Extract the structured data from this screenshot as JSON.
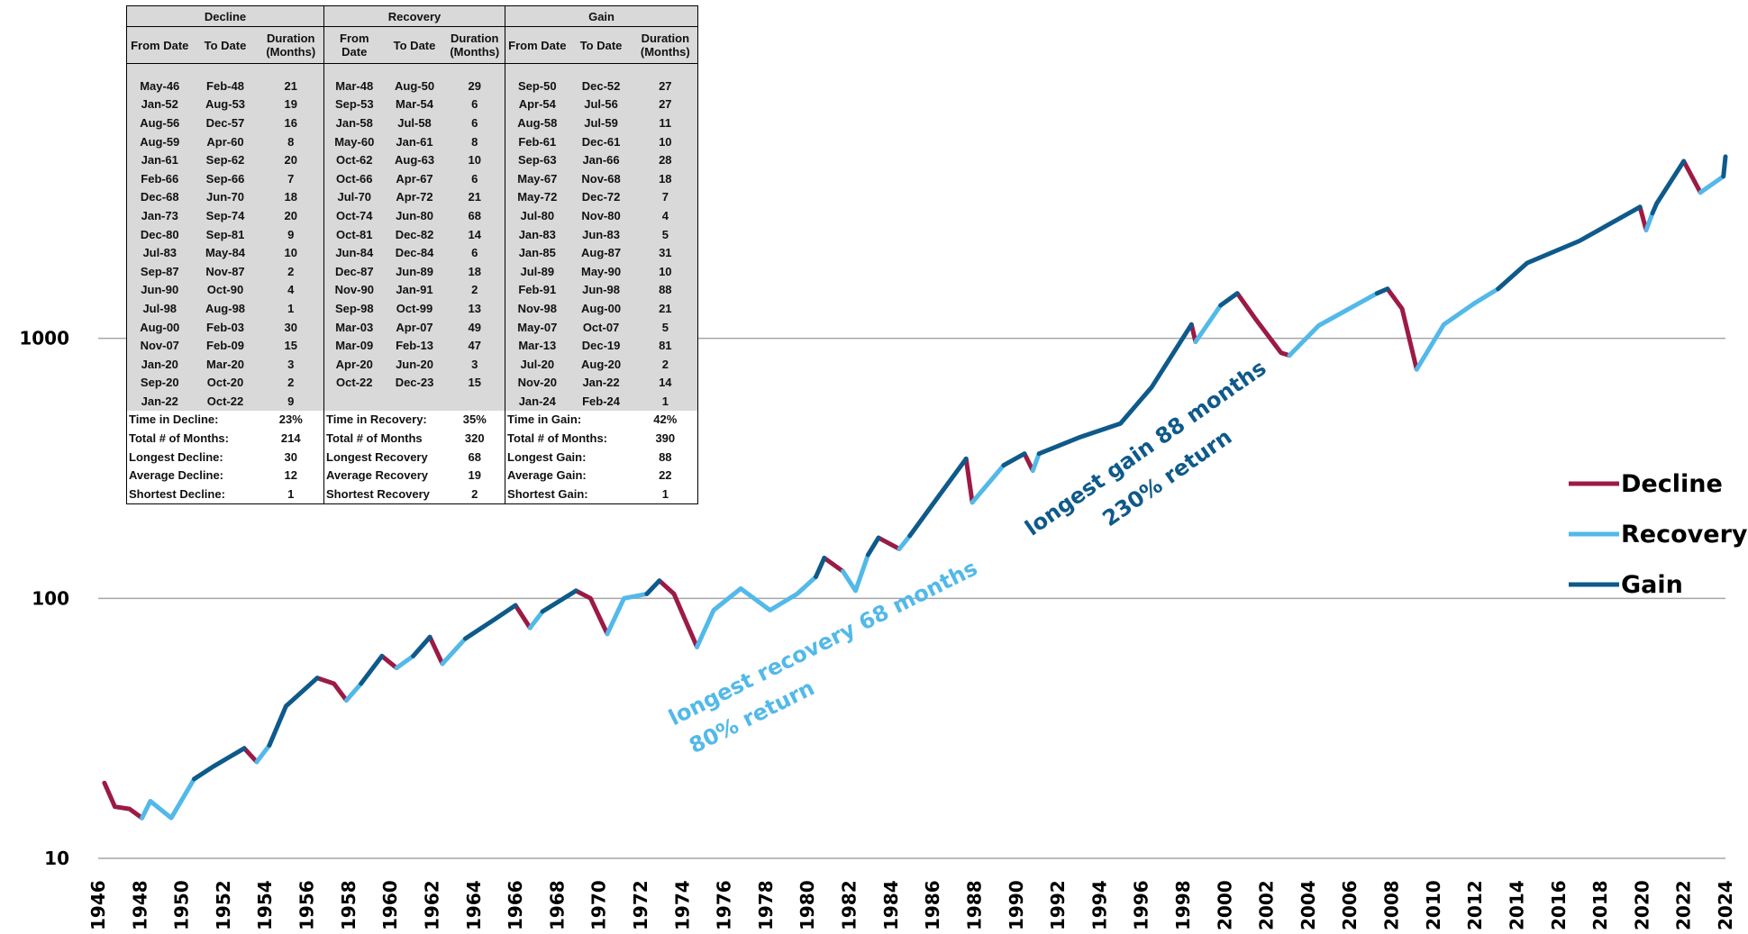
{
  "chart_data": {
    "type": "line",
    "log_y": true,
    "grid": true,
    "legend": "right",
    "xlim": [
      1946,
      2024
    ],
    "xticks": [
      1946,
      1948,
      1950,
      1952,
      1954,
      1956,
      1958,
      1960,
      1962,
      1964,
      1966,
      1968,
      1970,
      1972,
      1974,
      1976,
      1978,
      1980,
      1982,
      1984,
      1986,
      1988,
      1990,
      1992,
      1994,
      1996,
      1998,
      2000,
      2002,
      2004,
      2006,
      2008,
      2010,
      2012,
      2014,
      2016,
      2018,
      2020,
      2022,
      2024
    ],
    "ylim": [
      10,
      10000
    ],
    "yticks": [
      10,
      100,
      1000
    ],
    "x": [
      1946.3,
      1946.8,
      1947.5,
      1948.1,
      1948.5,
      1949.5,
      1950.6,
      1951.5,
      1953.0,
      1953.6,
      1954.2,
      1955.0,
      1956.5,
      1957.3,
      1957.9,
      1958.6,
      1959.6,
      1960.3,
      1961.1,
      1961.9,
      1962.5,
      1963.6,
      1965.0,
      1966.0,
      1966.7,
      1967.3,
      1968.9,
      1969.6,
      1970.4,
      1971.2,
      1972.3,
      1972.9,
      1973.6,
      1974.7,
      1975.5,
      1976.8,
      1978.2,
      1979.5,
      1980.4,
      1980.8,
      1981.7,
      1982.3,
      1982.9,
      1983.4,
      1984.4,
      1984.9,
      1986.0,
      1987.6,
      1987.9,
      1989.4,
      1990.4,
      1990.8,
      1991.1,
      1993.0,
      1995.0,
      1996.5,
      1998.4,
      1998.6,
      1999.8,
      2000.6,
      2001.5,
      2002.7,
      2003.1,
      2004.5,
      2007.3,
      2007.8,
      2008.5,
      2009.2,
      2010.5,
      2012.0,
      2013.1,
      2014.5,
      2017.0,
      2019.9,
      2020.2,
      2020.5,
      2020.7,
      2022.0,
      2022.8,
      2023.9,
      2024.0
    ],
    "series": [
      {
        "name": "Decline",
        "color": "#9b1b45",
        "values": [
          19.5,
          15.8,
          15.5,
          14.3,
          null,
          null,
          null,
          null,
          26.5,
          23.5,
          null,
          null,
          49.4,
          47,
          40.5,
          null,
          60,
          54,
          null,
          71,
          56,
          null,
          null,
          94,
          77,
          null,
          107,
          100,
          73,
          null,
          null,
          117,
          104,
          65,
          null,
          null,
          null,
          null,
          null,
          143,
          127,
          null,
          null,
          171,
          155,
          null,
          null,
          344,
          234,
          null,
          360,
          310,
          null,
          null,
          null,
          null,
          1130,
          970,
          null,
          1490,
          1180,
          880,
          860,
          null,
          null,
          1550,
          1300,
          760,
          null,
          null,
          null,
          null,
          null,
          3200,
          2610,
          null,
          null,
          4800,
          3640,
          null,
          null
        ]
      },
      {
        "name": "Recovery",
        "color": "#52b9e9",
        "values": [
          null,
          null,
          null,
          14.3,
          16.6,
          14.3,
          20.2,
          null,
          null,
          23.5,
          27.2,
          null,
          null,
          null,
          40.5,
          47,
          null,
          54,
          60,
          null,
          56,
          70,
          null,
          null,
          77,
          89,
          null,
          null,
          73,
          100,
          104,
          null,
          null,
          65,
          90,
          109,
          90,
          104,
          121,
          null,
          127,
          107,
          147,
          null,
          155,
          174,
          null,
          null,
          234,
          325,
          null,
          310,
          360,
          null,
          null,
          null,
          null,
          970,
          1340,
          null,
          null,
          null,
          860,
          1120,
          1490,
          null,
          null,
          760,
          1130,
          1370,
          1550,
          null,
          null,
          null,
          2610,
          3030,
          null,
          null,
          3640,
          4200,
          null
        ]
      },
      {
        "name": "Gain",
        "color": "#0e5a8a",
        "values": [
          null,
          null,
          null,
          null,
          null,
          null,
          20.2,
          22.5,
          26.5,
          null,
          27.2,
          38.5,
          49.4,
          null,
          null,
          47,
          60,
          null,
          60,
          71,
          null,
          70,
          83,
          94,
          null,
          89,
          107,
          null,
          null,
          null,
          104,
          117,
          null,
          null,
          null,
          null,
          null,
          null,
          121,
          143,
          null,
          null,
          147,
          171,
          null,
          174,
          230,
          344,
          null,
          325,
          360,
          null,
          360,
          415,
          470,
          650,
          1130,
          null,
          1340,
          1490,
          null,
          null,
          null,
          null,
          1490,
          1550,
          null,
          null,
          null,
          null,
          1550,
          1950,
          2370,
          3200,
          null,
          3030,
          3300,
          4800,
          null,
          4200,
          5000
        ]
      }
    ],
    "annotations": [
      [
        "longest recovery 68 months",
        "80% return"
      ],
      [
        "longest gain 88 months",
        "230% return"
      ]
    ]
  },
  "table": {
    "groups": [
      "Decline",
      "Recovery",
      "Gain"
    ],
    "columns": [
      "From Date",
      "To Date",
      "Duration (Months)"
    ],
    "rows": [
      [
        "May-46",
        "Feb-48",
        21,
        "Mar-48",
        "Aug-50",
        29,
        "Sep-50",
        "Dec-52",
        27
      ],
      [
        "Jan-52",
        "Aug-53",
        19,
        "Sep-53",
        "Mar-54",
        6,
        "Apr-54",
        "Jul-56",
        27
      ],
      [
        "Aug-56",
        "Dec-57",
        16,
        "Jan-58",
        "Jul-58",
        6,
        "Aug-58",
        "Jul-59",
        11
      ],
      [
        "Aug-59",
        "Apr-60",
        8,
        "May-60",
        "Jan-61",
        8,
        "Feb-61",
        "Dec-61",
        10
      ],
      [
        "Jan-61",
        "Sep-62",
        20,
        "Oct-62",
        "Aug-63",
        10,
        "Sep-63",
        "Jan-66",
        28
      ],
      [
        "Feb-66",
        "Sep-66",
        7,
        "Oct-66",
        "Apr-67",
        6,
        "May-67",
        "Nov-68",
        18
      ],
      [
        "Dec-68",
        "Jun-70",
        18,
        "Jul-70",
        "Apr-72",
        21,
        "May-72",
        "Dec-72",
        7
      ],
      [
        "Jan-73",
        "Sep-74",
        20,
        "Oct-74",
        "Jun-80",
        68,
        "Jul-80",
        "Nov-80",
        4
      ],
      [
        "Dec-80",
        "Sep-81",
        9,
        "Oct-81",
        "Dec-82",
        14,
        "Jan-83",
        "Jun-83",
        5
      ],
      [
        "Jul-83",
        "May-84",
        10,
        "Jun-84",
        "Dec-84",
        6,
        "Jan-85",
        "Aug-87",
        31
      ],
      [
        "Sep-87",
        "Nov-87",
        2,
        "Dec-87",
        "Jun-89",
        18,
        "Jul-89",
        "May-90",
        10
      ],
      [
        "Jun-90",
        "Oct-90",
        4,
        "Nov-90",
        "Jan-91",
        2,
        "Feb-91",
        "Jun-98",
        88
      ],
      [
        "Jul-98",
        "Aug-98",
        1,
        "Sep-98",
        "Oct-99",
        13,
        "Nov-98",
        "Aug-00",
        21
      ],
      [
        "Aug-00",
        "Feb-03",
        30,
        "Mar-03",
        "Apr-07",
        49,
        "May-07",
        "Oct-07",
        5
      ],
      [
        "Nov-07",
        "Feb-09",
        15,
        "Mar-09",
        "Feb-13",
        47,
        "Mar-13",
        "Dec-19",
        81
      ],
      [
        "Jan-20",
        "Mar-20",
        3,
        "Apr-20",
        "Jun-20",
        3,
        "Jul-20",
        "Aug-20",
        2
      ],
      [
        "Sep-20",
        "Oct-20",
        2,
        "Oct-22",
        "Dec-23",
        15,
        "Nov-20",
        "Jan-22",
        14
      ],
      [
        "Jan-22",
        "Oct-22",
        9,
        null,
        null,
        null,
        "Jan-24",
        "Feb-24",
        1
      ]
    ],
    "stats": [
      [
        [
          "Time in Decline:",
          "23%"
        ],
        [
          "Total # of Months:",
          214
        ],
        [
          "Longest Decline:",
          30
        ],
        [
          "Average Decline:",
          12
        ],
        [
          "Shortest Decline:",
          1
        ]
      ],
      [
        [
          "Time in Recovery:",
          "35%"
        ],
        [
          "Total # of Months",
          320
        ],
        [
          "Longest Recovery",
          68
        ],
        [
          "Average Recovery",
          19
        ],
        [
          "Shortest Recovery",
          2
        ]
      ],
      [
        [
          "Time in Gain:",
          "42%"
        ],
        [
          "Total # of Months:",
          390
        ],
        [
          "Longest Gain:",
          88
        ],
        [
          "Average Gain:",
          22
        ],
        [
          "Shortest Gain:",
          1
        ]
      ]
    ]
  }
}
